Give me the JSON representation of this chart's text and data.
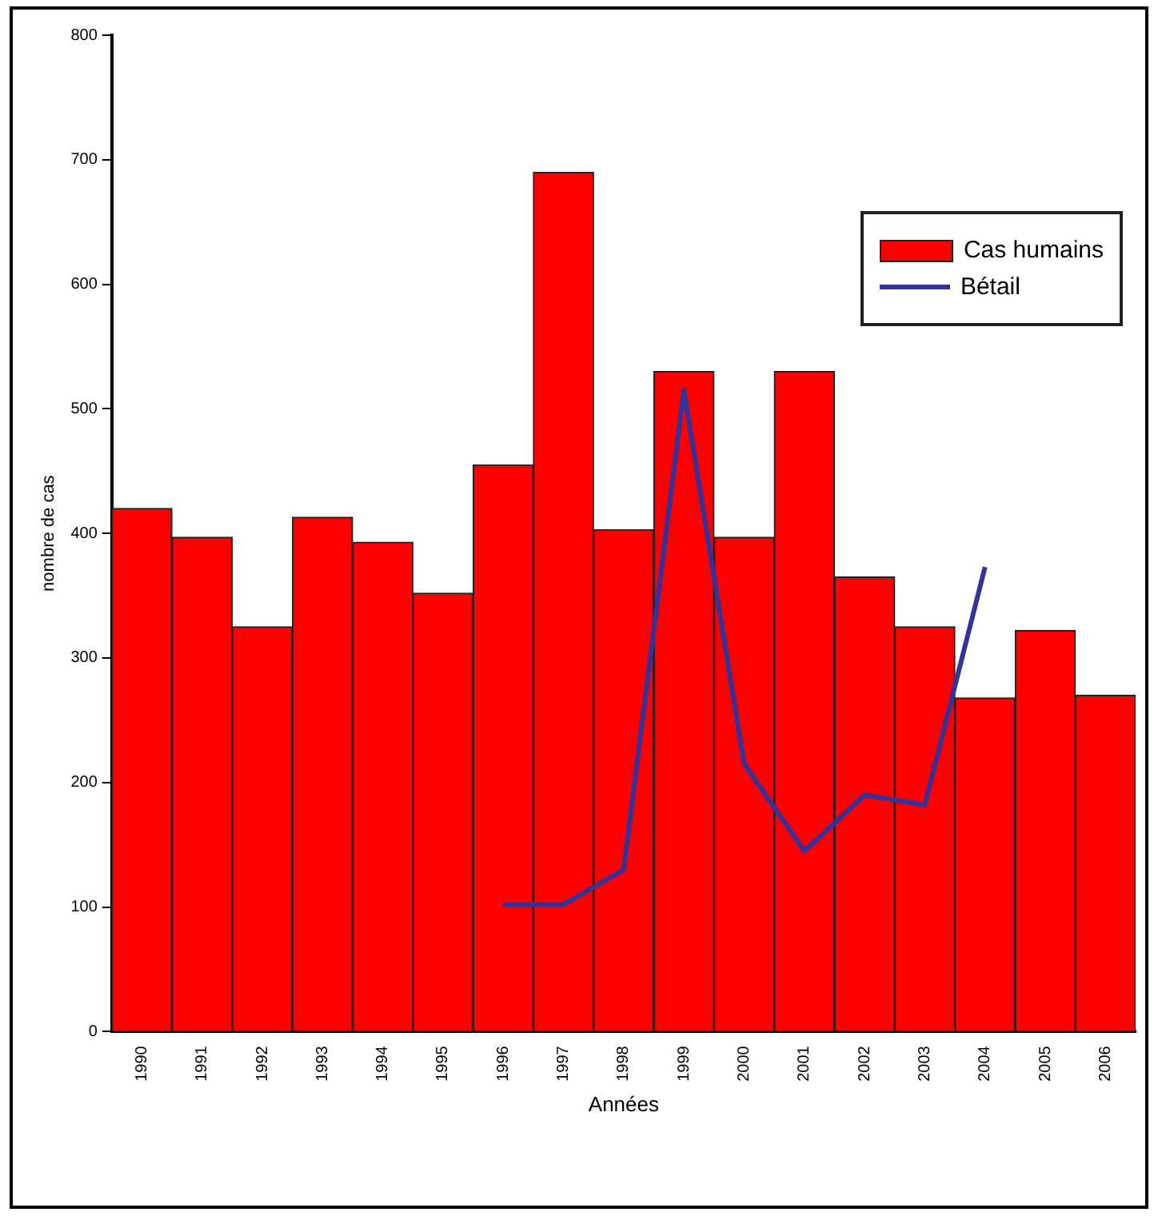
{
  "chart_data": {
    "type": "bar",
    "xlabel": "Années",
    "ylabel": "nombre de cas",
    "categories": [
      "1990",
      "1991",
      "1992",
      "1993",
      "1994",
      "1995",
      "1996",
      "1997",
      "1998",
      "1999",
      "2000",
      "2001",
      "2002",
      "2003",
      "2004",
      "2005",
      "2006"
    ],
    "series": [
      {
        "name": "Cas humains",
        "color": "#ff0000",
        "values": [
          420,
          397,
          325,
          413,
          393,
          352,
          455,
          690,
          403,
          530,
          397,
          530,
          365,
          325,
          268,
          322,
          270
        ]
      },
      {
        "name": "Bétail",
        "type": "line",
        "color": "#333399",
        "values": [
          null,
          null,
          null,
          null,
          null,
          null,
          102,
          102,
          130,
          515,
          215,
          145,
          190,
          182,
          373,
          null,
          null
        ]
      }
    ],
    "ylim": [
      0,
      800
    ],
    "yticks": [
      0,
      100,
      200,
      300,
      400,
      500,
      600,
      700,
      800
    ],
    "grid": false,
    "legend": "top right",
    "marker": "none"
  }
}
